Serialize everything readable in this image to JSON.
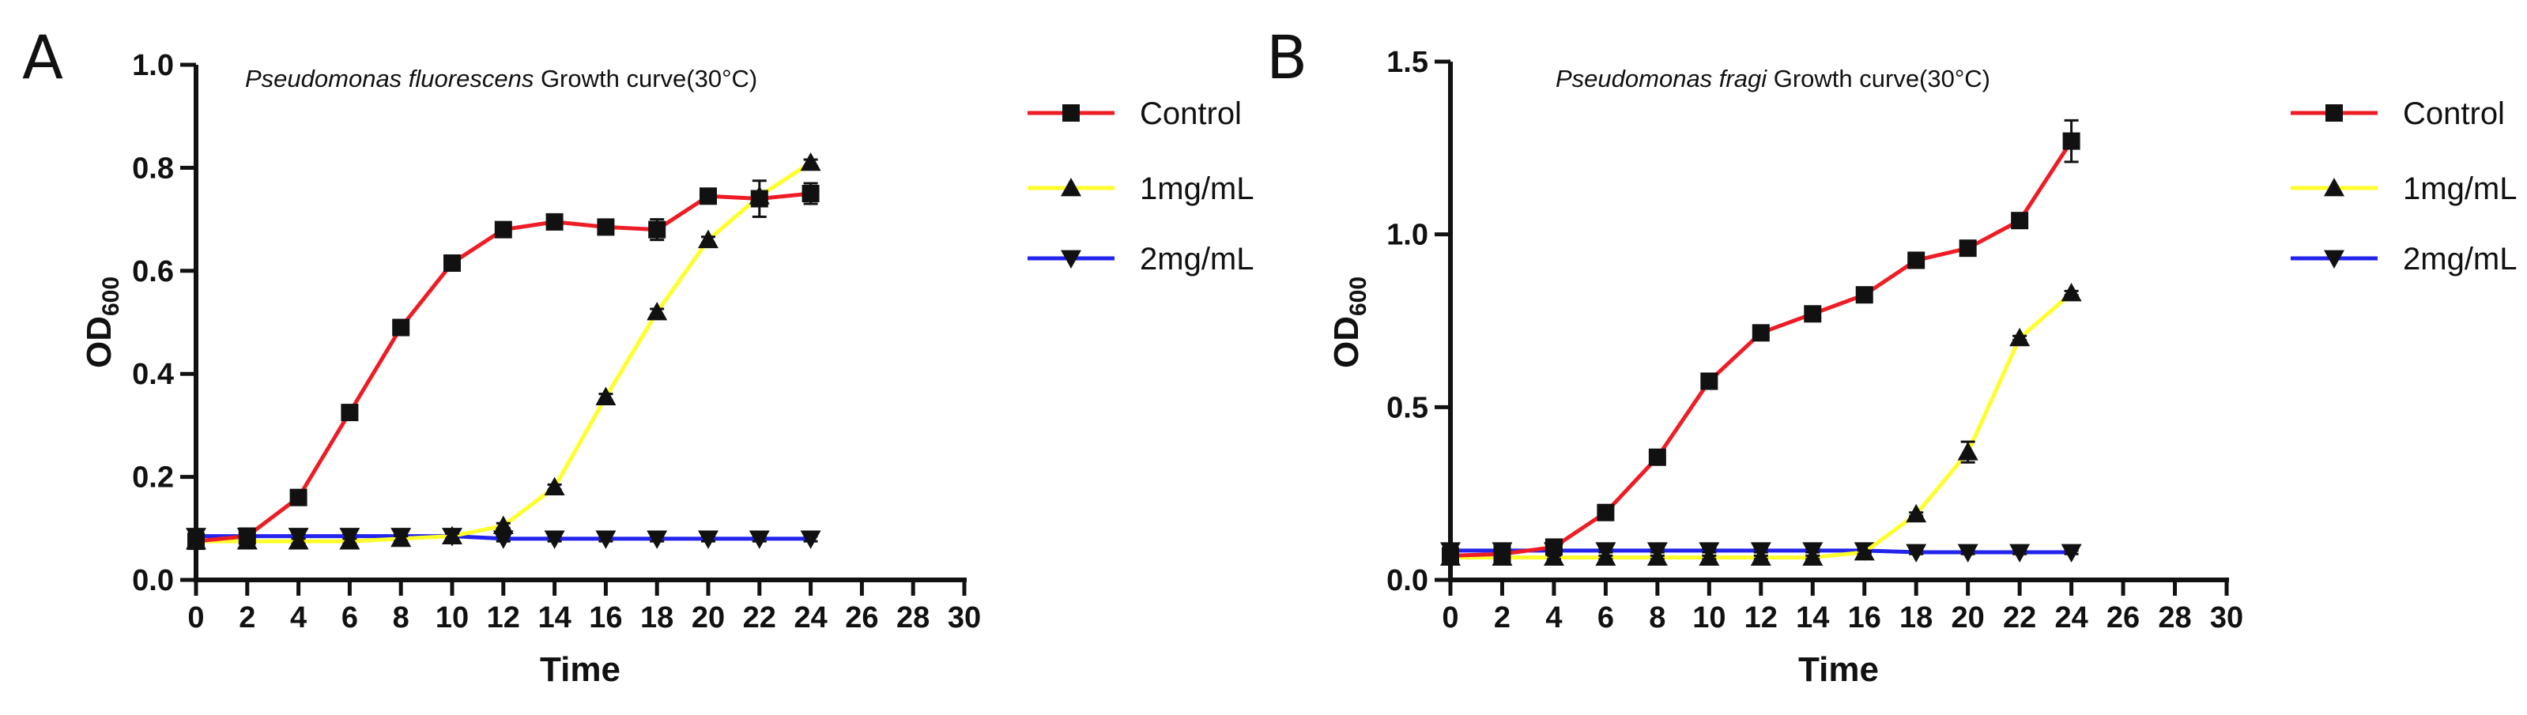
{
  "chart_data": [
    {
      "panel": "A",
      "type": "line",
      "title": "Pseudomonas fluorescens Growth curve(30°C)",
      "title_italic": "Pseudomonas fluorescens",
      "title_rest": " Growth curve(30°C)",
      "xlabel": "Time",
      "ylabel_main": "OD",
      "ylabel_sub": "600",
      "xlim": [
        0,
        30
      ],
      "ylim": [
        0,
        1.0
      ],
      "xticks": [
        0,
        2,
        4,
        6,
        8,
        10,
        12,
        14,
        16,
        18,
        20,
        22,
        24,
        26,
        28,
        30
      ],
      "yticks": [
        0.0,
        0.2,
        0.4,
        0.6,
        0.8,
        1.0
      ],
      "ytick_labels": [
        "0.0",
        "0.2",
        "0.4",
        "0.6",
        "0.8",
        "1.0"
      ],
      "legend_position": "right",
      "x": [
        0,
        2,
        4,
        6,
        8,
        10,
        12,
        14,
        16,
        18,
        20,
        22,
        24
      ],
      "series": [
        {
          "name": "Control",
          "color": "#ee1c25",
          "marker": "square",
          "values": [
            0.075,
            0.085,
            0.16,
            0.325,
            0.49,
            0.615,
            0.68,
            0.695,
            0.685,
            0.68,
            0.745,
            0.74,
            0.75
          ],
          "errors": [
            0.008,
            0.005,
            0.006,
            0.006,
            0.006,
            0.006,
            0.006,
            0.008,
            0.01,
            0.02,
            0.01,
            0.035,
            0.02
          ]
        },
        {
          "name": "1mg/mL",
          "color": "#ffff2a",
          "marker": "triangle-up",
          "values": [
            0.075,
            0.075,
            0.075,
            0.075,
            0.08,
            0.085,
            0.105,
            0.18,
            0.355,
            0.52,
            0.66,
            0.745,
            0.81
          ],
          "errors": [
            0.005,
            0.005,
            0.005,
            0.005,
            0.005,
            0.005,
            0.005,
            0.005,
            0.006,
            0.006,
            0.006,
            0.006,
            0.006
          ]
        },
        {
          "name": "2mg/mL",
          "color": "#2323ee",
          "marker": "triangle-down",
          "values": [
            0.085,
            0.085,
            0.085,
            0.085,
            0.085,
            0.085,
            0.08,
            0.08,
            0.08,
            0.08,
            0.08,
            0.08,
            0.08
          ],
          "errors": [
            0.005,
            0.005,
            0.005,
            0.005,
            0.005,
            0.005,
            0.005,
            0.005,
            0.005,
            0.005,
            0.005,
            0.005,
            0.005
          ]
        }
      ]
    },
    {
      "panel": "B",
      "type": "line",
      "title": "Pseudomonas fragi Growth curve(30°C)",
      "title_italic": "Pseudomonas fragi",
      "title_rest": " Growth curve(30°C)",
      "xlabel": "Time",
      "ylabel_main": "OD",
      "ylabel_sub": "600",
      "xlim": [
        0,
        30
      ],
      "ylim": [
        0,
        1.5
      ],
      "xticks": [
        0,
        2,
        4,
        6,
        8,
        10,
        12,
        14,
        16,
        18,
        20,
        22,
        24,
        26,
        28,
        30
      ],
      "yticks": [
        0.0,
        0.5,
        1.0,
        1.5
      ],
      "ytick_labels": [
        "0.0",
        "0.5",
        "1.0",
        "1.5"
      ],
      "legend_position": "right",
      "x": [
        0,
        2,
        4,
        6,
        8,
        10,
        12,
        14,
        16,
        18,
        20,
        22,
        24
      ],
      "series": [
        {
          "name": "Control",
          "color": "#ee1c25",
          "marker": "square",
          "values": [
            0.07,
            0.075,
            0.095,
            0.195,
            0.355,
            0.575,
            0.715,
            0.77,
            0.825,
            0.925,
            0.96,
            1.04,
            1.27
          ],
          "errors": [
            0.008,
            0.006,
            0.01,
            0.01,
            0.01,
            0.01,
            0.01,
            0.015,
            0.01,
            0.01,
            0.02,
            0.01,
            0.06
          ]
        },
        {
          "name": "1mg/mL",
          "color": "#ffff2a",
          "marker": "triangle-up",
          "values": [
            0.065,
            0.065,
            0.065,
            0.065,
            0.065,
            0.065,
            0.065,
            0.065,
            0.08,
            0.19,
            0.37,
            0.7,
            0.83
          ],
          "errors": [
            0.005,
            0.005,
            0.005,
            0.005,
            0.005,
            0.005,
            0.005,
            0.005,
            0.005,
            0.005,
            0.03,
            0.006,
            0.006
          ]
        },
        {
          "name": "2mg/mL",
          "color": "#2323ee",
          "marker": "triangle-down",
          "values": [
            0.085,
            0.085,
            0.085,
            0.085,
            0.085,
            0.085,
            0.085,
            0.085,
            0.085,
            0.08,
            0.08,
            0.08,
            0.08
          ],
          "errors": [
            0.005,
            0.005,
            0.005,
            0.005,
            0.005,
            0.005,
            0.005,
            0.005,
            0.005,
            0.005,
            0.005,
            0.005,
            0.005
          ]
        }
      ]
    }
  ]
}
